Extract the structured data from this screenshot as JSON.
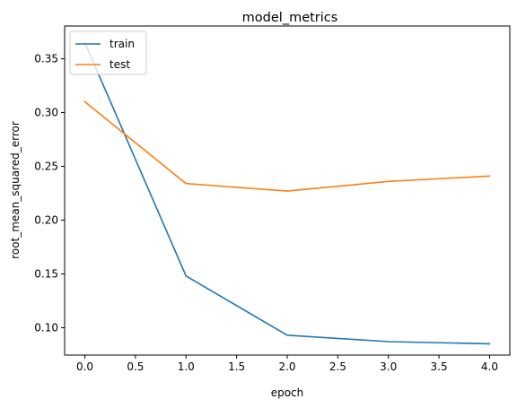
{
  "chart_data": {
    "type": "line",
    "title": "model_metrics",
    "xlabel": "epoch",
    "ylabel": "root_mean_squared_error",
    "x": [
      0,
      1,
      2,
      3,
      4
    ],
    "series": [
      {
        "name": "train",
        "color": "#1f77b4",
        "values": [
          0.365,
          0.148,
          0.093,
          0.087,
          0.085
        ]
      },
      {
        "name": "test",
        "color": "#ff7f0e",
        "values": [
          0.31,
          0.234,
          0.227,
          0.236,
          0.241
        ]
      }
    ],
    "xlim": [
      -0.2,
      4.2
    ],
    "ylim": [
      0.0745,
      0.3805
    ],
    "xticks": [
      0.0,
      0.5,
      1.0,
      1.5,
      2.0,
      2.5,
      3.0,
      3.5,
      4.0
    ],
    "xtick_labels": [
      "0.0",
      "0.5",
      "1.0",
      "1.5",
      "2.0",
      "2.5",
      "3.0",
      "3.5",
      "4.0"
    ],
    "yticks": [
      0.1,
      0.15,
      0.2,
      0.25,
      0.3,
      0.35
    ],
    "ytick_labels": [
      "0.10",
      "0.15",
      "0.20",
      "0.25",
      "0.30",
      "0.35"
    ],
    "grid": false,
    "legend_position": "top-left"
  }
}
